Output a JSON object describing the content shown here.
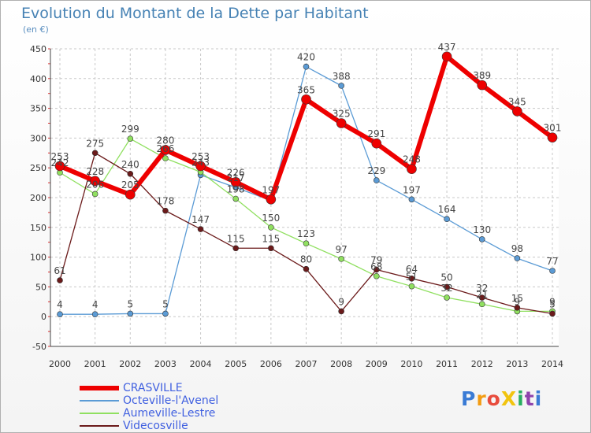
{
  "title": "Evolution du Montant de la Dette par Habitant",
  "subtitle": "(en €)",
  "logo_text": "ProXiti",
  "chart_data": {
    "type": "line",
    "title": "Evolution du Montant de la Dette par Habitant",
    "subtitle": "(en €)",
    "xlabel": "",
    "ylabel": "",
    "x": [
      2000,
      2001,
      2002,
      2003,
      2004,
      2005,
      2006,
      2007,
      2008,
      2009,
      2010,
      2011,
      2012,
      2013,
      2014
    ],
    "x_tick_labels": [
      "2000",
      "2001",
      "2002",
      "2003",
      "2004",
      "2005",
      "2006",
      "2007",
      "2008",
      "2009",
      "2010",
      "2011",
      "2012",
      "2013",
      "2014"
    ],
    "ylim": [
      -50,
      450
    ],
    "y_ticks": [
      -50,
      0,
      50,
      100,
      150,
      200,
      250,
      300,
      350,
      400,
      450
    ],
    "y_tick_labels": [
      "-50",
      "0",
      "50",
      "100",
      "150",
      "200",
      "250",
      "300",
      "350",
      "400",
      "450"
    ],
    "grid": true,
    "legend_position": "bottom-left",
    "series": [
      {
        "name": "Octeville-l'Avenel",
        "color": "#5b9bd5",
        "line_width": 1.3,
        "marker_radius": 3.5,
        "values": [
          4,
          4,
          5,
          5,
          238,
          217,
          195,
          420,
          388,
          229,
          197,
          164,
          130,
          98,
          77
        ],
        "labels": [
          "4",
          "4",
          "5",
          "5",
          "",
          "217",
          "",
          "420",
          "388",
          "229",
          "197",
          "164",
          "130",
          "98",
          "77"
        ]
      },
      {
        "name": "Aumeville-Lestre",
        "color": "#90e060",
        "line_width": 1.3,
        "marker_radius": 3.5,
        "values": [
          242,
          206,
          299,
          266,
          243,
          198,
          150,
          123,
          97,
          68,
          51,
          32,
          21,
          9,
          9
        ],
        "labels": [
          "242",
          "206",
          "299",
          "266",
          "243",
          "198",
          "150",
          "123",
          "97",
          "68",
          "51",
          "32",
          "21",
          "9",
          "9"
        ]
      },
      {
        "name": "Videcosville",
        "color": "#6b1a1a",
        "line_width": 1.3,
        "marker_radius": 3.5,
        "values": [
          61,
          275,
          240,
          178,
          147,
          115,
          115,
          80,
          9,
          79,
          64,
          50,
          32,
          15,
          5
        ],
        "labels": [
          "61",
          "275",
          "240",
          "178",
          "147",
          "115",
          "115",
          "80",
          "9",
          "79",
          "64",
          "50",
          "32",
          "15",
          "5"
        ]
      },
      {
        "name": "CRASVILLE",
        "color": "#ee0000",
        "line_width": 6,
        "marker_radius": 6,
        "values": [
          253,
          228,
          205,
          280,
          253,
          226,
          197,
          365,
          325,
          291,
          248,
          437,
          389,
          345,
          301
        ],
        "labels": [
          "253",
          "228",
          "205",
          "280",
          "253",
          "226",
          "197",
          "365",
          "325",
          "291",
          "248",
          "437",
          "389",
          "345",
          "301"
        ]
      }
    ],
    "legend_order": [
      "CRASVILLE",
      "Octeville-l'Avenel",
      "Aumeville-Lestre",
      "Videcosville"
    ]
  }
}
